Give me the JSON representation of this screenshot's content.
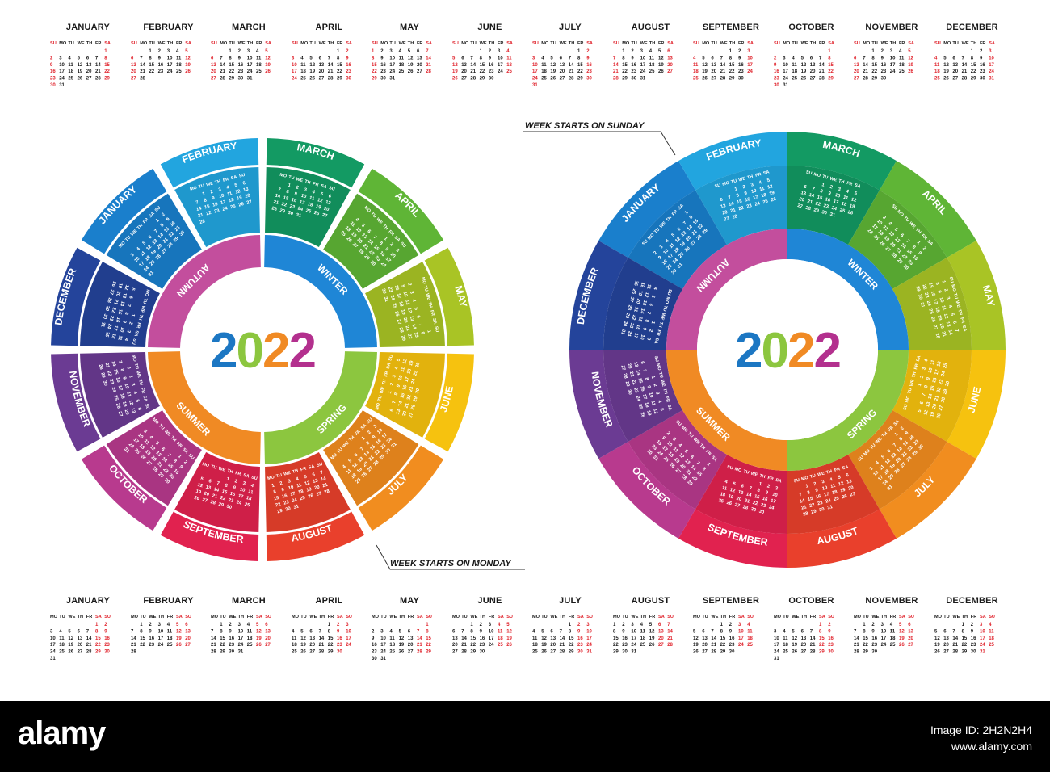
{
  "year": "2022",
  "months": [
    "JANUARY",
    "FEBRUARY",
    "MARCH",
    "APRIL",
    "MAY",
    "JUNE",
    "JULY",
    "AUGUST",
    "SEPTEMBER",
    "OCTOBER",
    "NOVEMBER",
    "DECEMBER"
  ],
  "seasons": [
    "WINTER",
    "SPRING",
    "SUMMER",
    "AUTUMN"
  ],
  "weekdays_sunday": [
    "SU",
    "MO",
    "TU",
    "WE",
    "TH",
    "FR",
    "SA"
  ],
  "weekdays_monday": [
    "MO",
    "TU",
    "WE",
    "TH",
    "FR",
    "SA",
    "SU"
  ],
  "label_sunday": "WEEK STARTS ON SUNDAY",
  "label_monday": "WEEK STARTS ON MONDAY",
  "footer": {
    "logo": "alamy",
    "image_id_line": "Image ID: 2H2N2H4",
    "site": "www.alamy.com"
  },
  "colors": {
    "JANUARY": "#1a7fcc",
    "FEBRUARY": "#22a5df",
    "MARCH": "#139a63",
    "APRIL": "#5fb536",
    "MAY": "#a9c425",
    "JUNE": "#f6c20f",
    "JULY": "#f18d1f",
    "AUGUST": "#e9402c",
    "SEPTEMBER": "#e1224f",
    "OCTOBER": "#b83a8e",
    "NOVEMBER": "#6b3b93",
    "DECEMBER": "#24449b",
    "year_digits": [
      "#1c77c3",
      "#8cc63f",
      "#f08a24",
      "#b3308e"
    ],
    "weekend": "#e0232c",
    "text": "#1a1a1a"
  }
}
